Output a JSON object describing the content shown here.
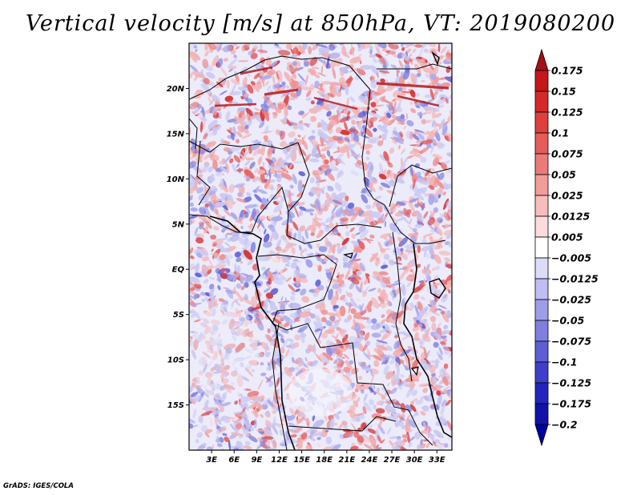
{
  "title": "Vertical velocity [m/s] at 850hPa, VT: 2019080200",
  "credit": "GrADS: IGES/COLA",
  "map": {
    "lon_range": [
      0,
      35
    ],
    "lat_range": [
      -20,
      25
    ],
    "lat_ticks": [
      {
        "value": 20,
        "label": "20N"
      },
      {
        "value": 15,
        "label": "15N"
      },
      {
        "value": 10,
        "label": "10N"
      },
      {
        "value": 5,
        "label": "5N"
      },
      {
        "value": 0,
        "label": "EQ"
      },
      {
        "value": -5,
        "label": "5S"
      },
      {
        "value": -10,
        "label": "10S"
      },
      {
        "value": -15,
        "label": "15S"
      }
    ],
    "lon_ticks": [
      {
        "value": 3,
        "label": "3E"
      },
      {
        "value": 6,
        "label": "6E"
      },
      {
        "value": 9,
        "label": "9E"
      },
      {
        "value": 12,
        "label": "12E"
      },
      {
        "value": 15,
        "label": "15E"
      },
      {
        "value": 18,
        "label": "18E"
      },
      {
        "value": 21,
        "label": "21E"
      },
      {
        "value": 24,
        "label": "24E"
      },
      {
        "value": 27,
        "label": "27E"
      },
      {
        "value": 30,
        "label": "30E"
      },
      {
        "value": 33,
        "label": "33E"
      }
    ]
  },
  "colorbar": {
    "levels": [
      {
        "label": "0.175"
      },
      {
        "label": "0.15"
      },
      {
        "label": "0.125"
      },
      {
        "label": "0.1"
      },
      {
        "label": "0.075"
      },
      {
        "label": "0.05"
      },
      {
        "label": "0.025"
      },
      {
        "label": "0.0125"
      },
      {
        "label": "0.005"
      },
      {
        "label": "−0.005"
      },
      {
        "label": "−0.0125"
      },
      {
        "label": "−0.025"
      },
      {
        "label": "−0.05"
      },
      {
        "label": "−0.075"
      },
      {
        "label": "−0.1"
      },
      {
        "label": "−0.125"
      },
      {
        "label": "−0.175"
      },
      {
        "label": "−0.2"
      }
    ],
    "colors": [
      "#a50f15",
      "#c4161c",
      "#d6282b",
      "#e03f3f",
      "#e65b5b",
      "#ec7a7a",
      "#f29c9c",
      "#f7bdbd",
      "#fbdcdc",
      "#ffffff",
      "#dcdcf8",
      "#bebef2",
      "#9e9ee8",
      "#7f7fe0",
      "#5e5ed6",
      "#3f3fcc",
      "#2424bd",
      "#1212a8",
      "#0000a0"
    ]
  }
}
